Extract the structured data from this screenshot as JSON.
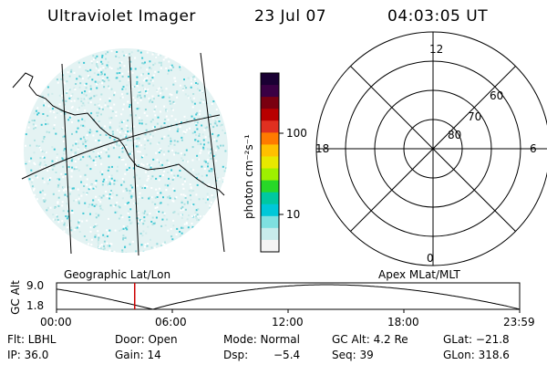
{
  "header": {
    "title": "Ultraviolet Imager",
    "date": "23 Jul 07",
    "time": "04:03:05 UT"
  },
  "left_map": {
    "label": "Geographic Lat/Lon"
  },
  "colorbar": {
    "unit_label": "photon cm⁻²s⁻¹",
    "ticks": [
      "100",
      "10"
    ],
    "colors": [
      "#1a0033",
      "#3a0044",
      "#7a0010",
      "#b80000",
      "#e03020",
      "#ff7a00",
      "#ffc000",
      "#e8e800",
      "#9ef000",
      "#28d828",
      "#00c8a0",
      "#00c8d8",
      "#7ee0e0",
      "#c8ecec",
      "#f4f4f4"
    ]
  },
  "polar_plot": {
    "label": "Apex MLat/MLT",
    "mlt_labels": {
      "top": "12",
      "left": "18",
      "right": "6",
      "bottom": "0"
    },
    "lat_labels": [
      "60",
      "70",
      "80"
    ]
  },
  "altitude_plot": {
    "ylabel": "GC Alt",
    "y_ticks": [
      "9.0",
      "1.8"
    ],
    "x_ticks": [
      "00:00",
      "06:00",
      "12:00",
      "18:00",
      "23:59"
    ],
    "current_time_marker": "04:03:05",
    "marker_color": "#cc0000"
  },
  "info": {
    "row1": {
      "filter": "Flt: LBHL",
      "door": "Door: Open",
      "mode": "Mode: Normal",
      "gc_alt": "GC Alt: 4.2 Re",
      "glat": "GLat: −21.8"
    },
    "row2": {
      "ip": "IP: 36.0",
      "gain": "Gain: 14",
      "dsp_label": "Dsp:",
      "dsp_value": "−5.4",
      "seq": "Seq: 39",
      "glon": "GLon: 318.6"
    }
  }
}
